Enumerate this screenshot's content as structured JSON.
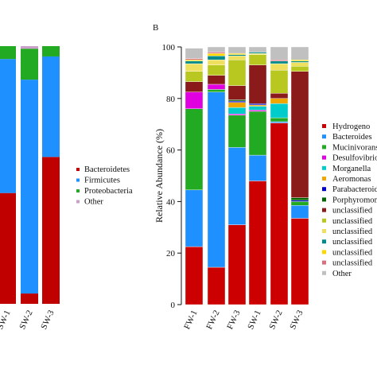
{
  "chart_data": [
    {
      "type": "bar",
      "stacked": true,
      "panel_label": "",
      "categories": [
        "FW-1",
        "FW-2",
        "FW-3",
        "SW-1",
        "SW-2",
        "SW-3"
      ],
      "visible_categories": [
        "FW-3",
        "SW-1",
        "SW-2",
        "SW-3"
      ],
      "tick_labels": [
        "FW-1",
        "",
        "",
        "SW-1",
        "SW-2",
        "SW-3"
      ],
      "ylim": [
        0,
        100
      ],
      "colors": {
        "Bacteroidetes": "#c00000",
        "Firmicutes": "#1e90ff",
        "Proteobacteria": "#22aa22",
        "Other": "#c8a0c8"
      },
      "series": [
        {
          "name": "Bacteroidetes",
          "values": [
            null,
            null,
            null,
            43,
            4,
            57
          ]
        },
        {
          "name": "Firmicutes",
          "values": [
            null,
            null,
            null,
            52,
            83,
            39
          ]
        },
        {
          "name": "Proteobacteria",
          "values": [
            null,
            null,
            null,
            5,
            12,
            4
          ]
        },
        {
          "name": "Other",
          "values": [
            null,
            null,
            null,
            0,
            1,
            0
          ]
        }
      ],
      "legend": [
        "Bacteroidetes",
        "Firmicutes",
        "Proteobacteria",
        "Other"
      ]
    },
    {
      "type": "bar",
      "stacked": true,
      "panel_label": "B",
      "categories": [
        "FW-1",
        "FW-2",
        "FW-3",
        "SW-1",
        "SW-2",
        "SW-3"
      ],
      "ylabel": "Relative Abundance (%)",
      "ylim": [
        0,
        100
      ],
      "yticks": [
        0,
        20,
        40,
        60,
        80,
        100
      ],
      "colors": {
        "Hydrogeno": "#cc0000",
        "Bacteroides": "#1e90ff",
        "Mucinivorans": "#22aa22",
        "Desulfovibrio": "#e000e0",
        "Morganella": "#00cccc",
        "Aeromonas": "#f0a800",
        "Parabacteroides": "#0000cc",
        "Porphyromonas": "#006400",
        "unclassified_1": "#8b1a1a",
        "unclassified_2": "#b8c820",
        "unclassified_3": "#f0e060",
        "unclassified_4": "#008b8b",
        "unclassified_5": "#ffd700",
        "unclassified_6": "#d87080",
        "Other": "#c0c0c0"
      },
      "series": [
        {
          "name": "Hydrogeno",
          "values": [
            22.5,
            14.5,
            31,
            48,
            70.5,
            33.5
          ]
        },
        {
          "name": "Bacteroides",
          "values": [
            22,
            68,
            30,
            10,
            0.5,
            5
          ]
        },
        {
          "name": "Mucinivorans",
          "values": [
            31.5,
            1,
            12.5,
            17,
            1.5,
            1.5
          ]
        },
        {
          "name": "Desulfovibrio",
          "values": [
            6.5,
            2,
            0.5,
            0.5,
            0,
            0
          ]
        },
        {
          "name": "Morganella",
          "values": [
            0,
            0,
            2.5,
            1.5,
            5.5,
            0
          ]
        },
        {
          "name": "Aeromonas",
          "values": [
            0,
            0,
            2,
            0.5,
            2,
            0
          ]
        },
        {
          "name": "Parabacteroides",
          "values": [
            0,
            0,
            0.5,
            0.5,
            0,
            0.5
          ]
        },
        {
          "name": "Porphyromonas",
          "values": [
            0,
            0,
            0.5,
            0,
            0,
            1
          ]
        },
        {
          "name": "unclassified_1",
          "values": [
            4,
            3.5,
            5.5,
            15,
            2,
            49
          ]
        },
        {
          "name": "unclassified_2",
          "values": [
            4,
            4,
            10,
            4,
            9,
            2
          ]
        },
        {
          "name": "unclassified_3",
          "values": [
            3,
            2,
            1.5,
            0.5,
            2.5,
            1.5
          ]
        },
        {
          "name": "unclassified_4",
          "values": [
            1,
            1.5,
            0.5,
            0.5,
            1,
            0.5
          ]
        },
        {
          "name": "unclassified_5",
          "values": [
            0.5,
            1,
            0.5,
            0,
            0,
            0.5
          ]
        },
        {
          "name": "unclassified_6",
          "values": [
            0.5,
            0.5,
            0,
            0,
            0.5,
            0
          ]
        },
        {
          "name": "Other",
          "values": [
            4,
            2,
            2.5,
            2,
            5,
            5
          ]
        }
      ],
      "legend": [
        "Hydrogeno",
        "Bacteroides",
        "Mucinivorans",
        "Desulfovibrio",
        "Morganella",
        "Aeromonas",
        "Parabacteroides",
        "Porphyromonas",
        "unclassified",
        "unclassified",
        "unclassified",
        "unclassified",
        "unclassified",
        "unclassified",
        "Other"
      ]
    }
  ]
}
